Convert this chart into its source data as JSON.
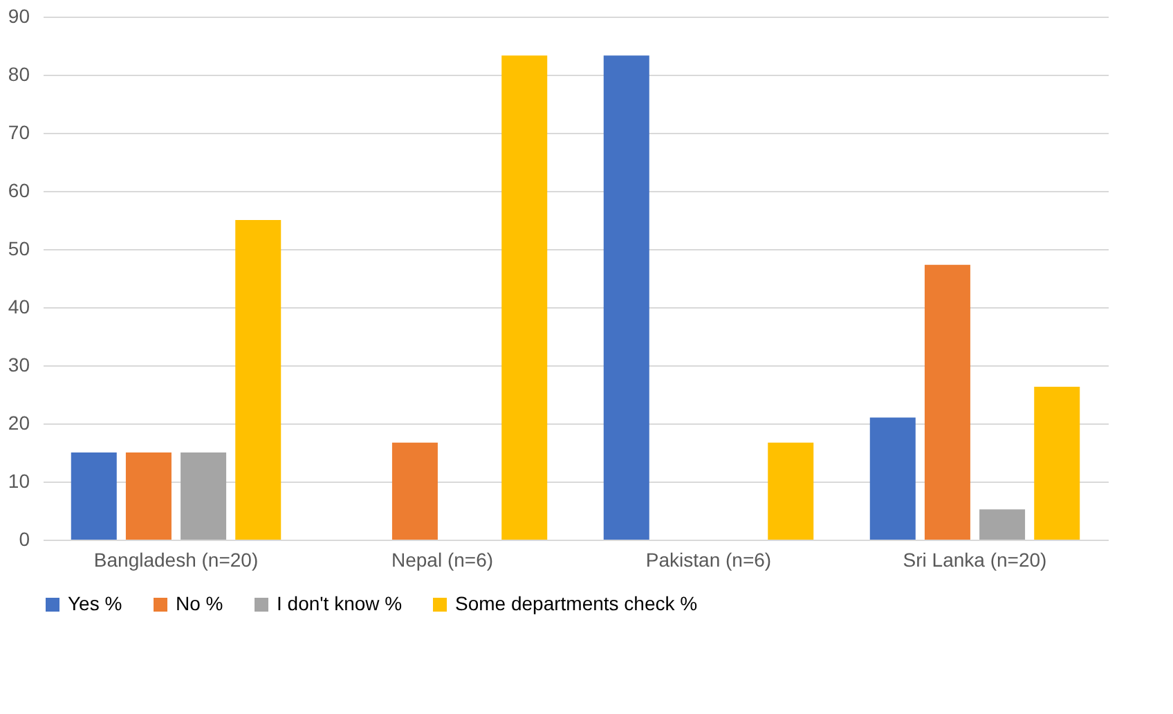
{
  "chart_data": {
    "type": "bar",
    "categories": [
      "Bangladesh (n=20)",
      "Nepal (n=6)",
      "Pakistan (n=6)",
      "Sri Lanka (n=20)"
    ],
    "series": [
      {
        "name": "Yes %",
        "color": "#4472c4",
        "values": [
          15,
          0,
          83.3,
          21
        ]
      },
      {
        "name": "No %",
        "color": "#ed7d31",
        "values": [
          15,
          16.7,
          0,
          47.3
        ]
      },
      {
        "name": "I don't know %",
        "color": "#a5a5a5",
        "values": [
          15,
          0,
          0,
          5.2
        ]
      },
      {
        "name": "Some departments check %",
        "color": "#ffc000",
        "values": [
          55,
          83.3,
          16.7,
          26.3
        ]
      }
    ],
    "ylim": [
      0,
      90
    ],
    "yticks": [
      0,
      10,
      20,
      30,
      40,
      50,
      60,
      70,
      80,
      90
    ],
    "grid": "y",
    "legend": "bottom"
  }
}
